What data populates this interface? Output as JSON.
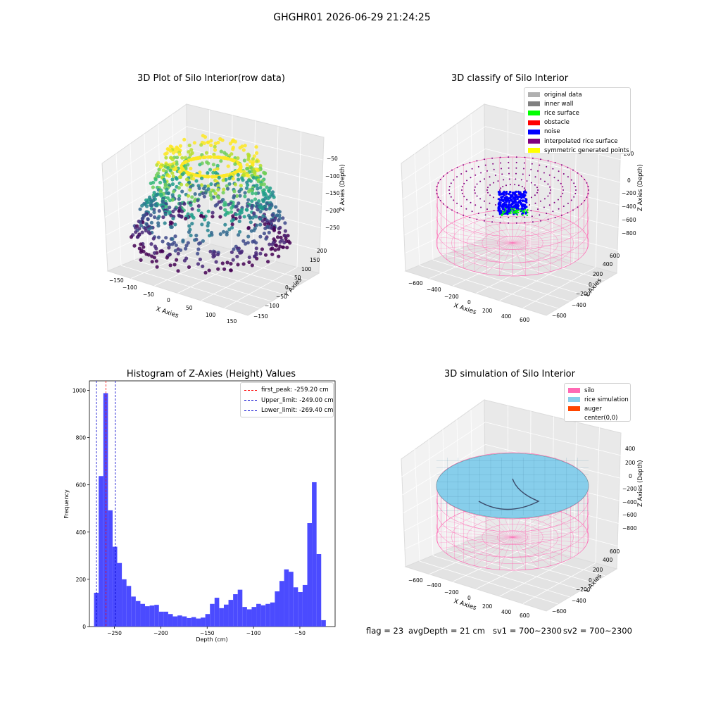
{
  "suptitle": "GHGHR01 2026-06-29 21:24:25",
  "footer": {
    "flag": "flag = 23",
    "avg_depth": "avgDepth = 21 cm",
    "sv1": "sv1 = 700~2300",
    "sv2": "sv2 = 700~2300"
  },
  "plots": {
    "raw": {
      "title": "3D Plot of Silo Interior(row data)",
      "xlabel": "X Axies",
      "ylabel": "Y Axies",
      "zlabel": "Z Axies (Depth)",
      "xticks": [
        "−150",
        "−100",
        "−50",
        "0",
        "50",
        "100",
        "150"
      ],
      "yticks": [
        "−150",
        "−100",
        "−50",
        "0",
        "50",
        "100",
        "150",
        "200"
      ],
      "zticks": [
        "−50",
        "−100",
        "−150",
        "−200",
        "−250"
      ]
    },
    "classify": {
      "title": "3D classify of Silo Interior",
      "xlabel": "X Axies",
      "ylabel": "Y Axies",
      "zlabel": "Z Axies (Depth)",
      "xticks": [
        "−600",
        "−400",
        "−200",
        "0",
        "200",
        "400",
        "600"
      ],
      "yticks": [
        "−600",
        "−400",
        "−200",
        "0",
        "200",
        "400",
        "600"
      ],
      "zticks": [
        "200",
        "0",
        "−200",
        "−400",
        "−600",
        "−800"
      ],
      "legend": [
        {
          "label": "original data",
          "color": "#b0b0b0"
        },
        {
          "label": "inner wall",
          "color": "#808080"
        },
        {
          "label": "rice surface",
          "color": "#00ff00"
        },
        {
          "label": "obstacle",
          "color": "#ff0000"
        },
        {
          "label": "noise",
          "color": "#0000ff"
        },
        {
          "label": "interpolated rice surface",
          "color": "#800080"
        },
        {
          "label": "symmetric generated points",
          "color": "#ffff00"
        }
      ]
    },
    "histogram": {
      "title": "Histogram of Z-Axies (Height) Values",
      "xlabel": "Depth (cm)",
      "ylabel": "Frequency",
      "legend": [
        {
          "label": "first_peak: -259.20 cm",
          "color": "#ff0000"
        },
        {
          "label": "Upper_limit: -249.00 cm",
          "color": "#0000cc"
        },
        {
          "label": "Lower_limit: -269.40 cm",
          "color": "#0000cc"
        }
      ]
    },
    "simulation": {
      "title": "3D simulation of Silo Interior",
      "xlabel": "X Axies",
      "ylabel": "Y Axies",
      "zlabel": "Z Axies (Depth)",
      "xticks": [
        "−600",
        "−400",
        "−200",
        "0",
        "200",
        "400",
        "600"
      ],
      "yticks": [
        "−600",
        "−400",
        "−200",
        "0",
        "200",
        "400",
        "600"
      ],
      "zticks": [
        "400",
        "200",
        "0",
        "−200",
        "−400",
        "−600",
        "−800"
      ],
      "legend": [
        {
          "label": "silo",
          "color": "#ff69b4"
        },
        {
          "label": "rice simulation",
          "color": "#87ceeb"
        },
        {
          "label": "auger",
          "color": "#ff4500"
        },
        {
          "label": "center(0,0)",
          "color": "#ffffff"
        }
      ]
    }
  },
  "chart_data": [
    {
      "type": "histogram",
      "title": "Histogram of Z-Axies (Height) Values",
      "xlabel": "Depth (cm)",
      "ylabel": "Frequency",
      "xlim": [
        -277,
        -12
      ],
      "ylim": [
        0,
        1040
      ],
      "xticks": [
        -250,
        -200,
        -150,
        -100,
        -50
      ],
      "yticks": [
        0,
        200,
        400,
        600,
        800,
        1000
      ],
      "bar_color": "#4b4bff",
      "bins": [
        {
          "x0": -272,
          "x1": -267,
          "count": 143
        },
        {
          "x0": -267,
          "x1": -262,
          "count": 637
        },
        {
          "x0": -262,
          "x1": -257,
          "count": 988
        },
        {
          "x0": -257,
          "x1": -252,
          "count": 492
        },
        {
          "x0": -252,
          "x1": -247,
          "count": 338
        },
        {
          "x0": -247,
          "x1": -242,
          "count": 269
        },
        {
          "x0": -242,
          "x1": -237,
          "count": 200
        },
        {
          "x0": -237,
          "x1": -232,
          "count": 172
        },
        {
          "x0": -232,
          "x1": -227,
          "count": 127
        },
        {
          "x0": -227,
          "x1": -222,
          "count": 108
        },
        {
          "x0": -222,
          "x1": -217,
          "count": 96
        },
        {
          "x0": -217,
          "x1": -212,
          "count": 86
        },
        {
          "x0": -212,
          "x1": -207,
          "count": 89
        },
        {
          "x0": -207,
          "x1": -202,
          "count": 92
        },
        {
          "x0": -202,
          "x1": -197,
          "count": 63
        },
        {
          "x0": -197,
          "x1": -192,
          "count": 63
        },
        {
          "x0": -192,
          "x1": -187,
          "count": 53
        },
        {
          "x0": -187,
          "x1": -182,
          "count": 43
        },
        {
          "x0": -182,
          "x1": -177,
          "count": 47
        },
        {
          "x0": -177,
          "x1": -172,
          "count": 43
        },
        {
          "x0": -172,
          "x1": -167,
          "count": 36
        },
        {
          "x0": -167,
          "x1": -162,
          "count": 40
        },
        {
          "x0": -162,
          "x1": -157,
          "count": 34
        },
        {
          "x0": -157,
          "x1": -152,
          "count": 38
        },
        {
          "x0": -152,
          "x1": -147,
          "count": 53
        },
        {
          "x0": -147,
          "x1": -142,
          "count": 96
        },
        {
          "x0": -142,
          "x1": -137,
          "count": 122
        },
        {
          "x0": -137,
          "x1": -132,
          "count": 78
        },
        {
          "x0": -132,
          "x1": -127,
          "count": 93
        },
        {
          "x0": -127,
          "x1": -122,
          "count": 113
        },
        {
          "x0": -122,
          "x1": -117,
          "count": 137
        },
        {
          "x0": -117,
          "x1": -112,
          "count": 156
        },
        {
          "x0": -112,
          "x1": -107,
          "count": 83
        },
        {
          "x0": -107,
          "x1": -102,
          "count": 73
        },
        {
          "x0": -102,
          "x1": -97,
          "count": 83
        },
        {
          "x0": -97,
          "x1": -92,
          "count": 96
        },
        {
          "x0": -92,
          "x1": -87,
          "count": 90
        },
        {
          "x0": -87,
          "x1": -82,
          "count": 96
        },
        {
          "x0": -82,
          "x1": -77,
          "count": 102
        },
        {
          "x0": -77,
          "x1": -72,
          "count": 149
        },
        {
          "x0": -72,
          "x1": -67,
          "count": 193
        },
        {
          "x0": -67,
          "x1": -62,
          "count": 242
        },
        {
          "x0": -62,
          "x1": -57,
          "count": 232
        },
        {
          "x0": -57,
          "x1": -52,
          "count": 166
        },
        {
          "x0": -52,
          "x1": -47,
          "count": 146
        },
        {
          "x0": -47,
          "x1": -42,
          "count": 176
        },
        {
          "x0": -42,
          "x1": -37,
          "count": 438
        },
        {
          "x0": -37,
          "x1": -32,
          "count": 611
        },
        {
          "x0": -32,
          "x1": -27,
          "count": 307
        },
        {
          "x0": -27,
          "x1": -22,
          "count": 27
        }
      ],
      "vlines": [
        {
          "label": "first_peak: -259.20 cm",
          "x": -259.2,
          "color": "#ff0000",
          "style": "dashed"
        },
        {
          "label": "Upper_limit: -249.00 cm",
          "x": -249.0,
          "color": "#0000cc",
          "style": "dashed"
        },
        {
          "label": "Lower_limit: -269.40 cm",
          "x": -269.4,
          "color": "#0000cc",
          "style": "dashed"
        }
      ],
      "legend_position": "top-right"
    }
  ]
}
